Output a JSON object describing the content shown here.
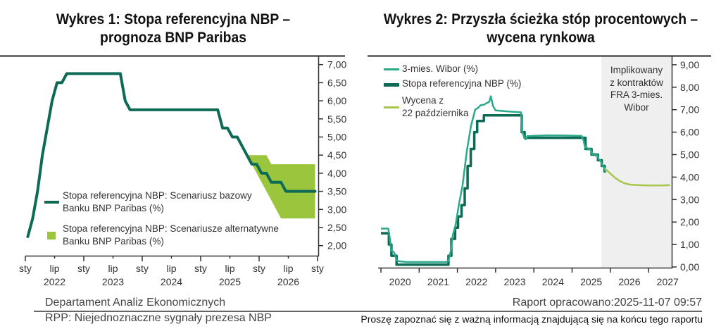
{
  "chart1": {
    "title": {
      "line1": "Wykres 1: Stopa referencyjna NBP –",
      "line2": "prognoza BNP Paribas"
    },
    "legend": [
      {
        "line1": "Stopa referencyjna NBP: Scenariusz bazowy",
        "line2": "Banku BNP Paribas (%)",
        "marker": "line"
      },
      {
        "line1": "Stopa referencyjna NBP: Scenariusze alternatywne",
        "line2": "Banku BNP Paribas (%)",
        "marker": "square"
      }
    ]
  },
  "chart2": {
    "title": {
      "line1": "Wykres 2: Przyszła ścieżka stóp procentowych –",
      "line2": "wycena rynkowa"
    },
    "legend": [
      {
        "line1": "3-mies. Wibor (%)",
        "marker": "line"
      },
      {
        "line1": "Stopa referencyjna NBP (%)",
        "marker": "line"
      },
      {
        "line1": "Wycena z",
        "line2": "22 października",
        "marker": "line"
      }
    ],
    "shade_label": [
      "Implikowany",
      "z kontraktów",
      "FRA 3-mies.",
      "Wibor"
    ]
  },
  "footer": {
    "department": "Departament Analiz Ekonomicznych",
    "report_date": "Raport opracowano:2025-11-07 09:57",
    "report_title": "RPP: Niejednoznaczne sygnały prezesa NBP",
    "disclaimer": "Proszę zapoznać się z ważną informacją znajdującą się na końcu tego raportu"
  },
  "colors": {
    "rule": "#222222",
    "axis": "#333333",
    "base_line": "#0d6b55",
    "band": "#9bc53d",
    "wibor": "#2aa98b",
    "ref_rate": "#0d6b55",
    "pricing": "#a7c64b",
    "shade": "#efefef"
  },
  "chart_data": [
    {
      "type": "line",
      "title": "Wykres 1: Stopa referencyjna NBP – prognoza BNP Paribas",
      "xlabel": "",
      "ylabel": "",
      "x_start": "2022-01",
      "x_step": "month",
      "ylim": [
        2.0,
        7.0
      ],
      "y_tick_values": [
        2.0,
        2.5,
        3.0,
        3.5,
        4.0,
        4.5,
        5.0,
        5.5,
        6.0,
        6.5,
        7.0
      ],
      "y_ticks": [
        "2,00",
        "2,50",
        "3,00",
        "3,50",
        "4,00",
        "4,50",
        "5,00",
        "5,50",
        "6,00",
        "6,50",
        "7,00"
      ],
      "x_tick_labels": [
        "sty",
        "lip",
        "sty",
        "lip",
        "sty",
        "lip",
        "sty",
        "lip",
        "sty",
        "lip",
        "sty"
      ],
      "x_year_labels": [
        "2022",
        "2023",
        "2024",
        "2025",
        "2026"
      ],
      "grid": false,
      "legend_position": "lower-left",
      "series": [
        {
          "name": "Stopa referencyjna NBP: Scenariusz bazowy Banku BNP Paribas (%)",
          "kind": "line",
          "values": [
            2.25,
            2.75,
            3.5,
            4.5,
            5.25,
            6.0,
            6.5,
            6.5,
            6.75,
            6.75,
            6.75,
            6.75,
            6.75,
            6.75,
            6.75,
            6.75,
            6.75,
            6.75,
            6.75,
            6.75,
            6.0,
            5.75,
            5.75,
            5.75,
            5.75,
            5.75,
            5.75,
            5.75,
            5.75,
            5.75,
            5.75,
            5.75,
            5.75,
            5.75,
            5.75,
            5.75,
            5.75,
            5.75,
            5.75,
            5.75,
            5.25,
            5.25,
            5.0,
            5.0,
            4.75,
            4.5,
            4.25,
            4.25,
            4.0,
            4.0,
            3.75,
            3.75,
            3.75,
            3.5,
            3.5,
            3.5,
            3.5,
            3.5,
            3.5,
            3.5
          ]
        },
        {
          "name": "Stopa referencyjna NBP: Scenariusze alternatywne Banku BNP Paribas (%)",
          "kind": "band",
          "start_index": 45,
          "upper": [
            4.5,
            4.5,
            4.5,
            4.5,
            4.5,
            4.25,
            4.25,
            4.25,
            4.25,
            4.25,
            4.25,
            4.25,
            4.25,
            4.25,
            4.25
          ],
          "lower": [
            4.5,
            4.25,
            4.0,
            3.75,
            3.5,
            3.25,
            3.0,
            2.75,
            2.75,
            2.75,
            2.75,
            2.75,
            2.75,
            2.75,
            2.75
          ]
        }
      ]
    },
    {
      "type": "line",
      "title": "Wykres 2: Przyszła ścieżka stóp procentowych – wycena rynkowa",
      "xlabel": "",
      "ylabel": "",
      "x_origin": "2020-01",
      "x_unit": "month",
      "ylim": [
        0,
        9
      ],
      "y_tick_values": [
        0,
        1,
        2,
        3,
        4,
        5,
        6,
        7,
        8,
        9
      ],
      "y_ticks": [
        "0,00",
        "1,00",
        "2,00",
        "3,00",
        "4,00",
        "5,00",
        "6,00",
        "7,00",
        "8,00",
        "9,00"
      ],
      "x_tick_labels": [
        "2020",
        "2021",
        "2022",
        "2023",
        "2024",
        "2025",
        "2026",
        "2027"
      ],
      "grid": false,
      "legend_position": "upper-left",
      "shaded_region": {
        "from": 69.2,
        "to": 91.4,
        "label": "Implikowany z kontraktów FRA 3-mies. Wibor"
      },
      "series": [
        {
          "name": "3-mies. Wibor (%)",
          "kind": "line",
          "points": [
            [
              0,
              1.71
            ],
            [
              2.3,
              1.71
            ],
            [
              2.6,
              1.45
            ],
            [
              2.9,
              1.17
            ],
            [
              3.2,
              0.72
            ],
            [
              3.9,
              0.68
            ],
            [
              4.3,
              0.6
            ],
            [
              4.9,
              0.3
            ],
            [
              5.5,
              0.26
            ],
            [
              8,
              0.22
            ],
            [
              20.5,
              0.22
            ],
            [
              21.2,
              0.27
            ],
            [
              22,
              0.75
            ],
            [
              22.6,
              1.45
            ],
            [
              23.4,
              1.85
            ],
            [
              24.5,
              2.8
            ],
            [
              25.6,
              3.6
            ],
            [
              27,
              5.2
            ],
            [
              28.3,
              6.3
            ],
            [
              29.6,
              7.0
            ],
            [
              30.5,
              7.08
            ],
            [
              31.3,
              7.2
            ],
            [
              32.3,
              7.22
            ],
            [
              33.3,
              7.3
            ],
            [
              34,
              7.35
            ],
            [
              34.5,
              7.6
            ],
            [
              35.2,
              7.15
            ],
            [
              36,
              6.97
            ],
            [
              40,
              6.92
            ],
            [
              44,
              6.88
            ],
            [
              44.3,
              6.05
            ],
            [
              44.9,
              5.8
            ],
            [
              45.4,
              5.68
            ],
            [
              46,
              5.82
            ],
            [
              52,
              5.86
            ],
            [
              58,
              5.85
            ],
            [
              63,
              5.83
            ],
            [
              63.6,
              5.62
            ],
            [
              64.1,
              5.32
            ],
            [
              64.7,
              5.3
            ],
            [
              65.2,
              5.22
            ],
            [
              65.8,
              5.25
            ],
            [
              66.3,
              5.02
            ],
            [
              66.9,
              5.05
            ],
            [
              67.4,
              4.95
            ],
            [
              67.9,
              4.98
            ],
            [
              68.4,
              4.78
            ],
            [
              68.9,
              4.75
            ],
            [
              69.4,
              4.55
            ],
            [
              69.9,
              4.45
            ],
            [
              70.3,
              4.35
            ],
            [
              70.5,
              4.22
            ]
          ]
        },
        {
          "name": "Stopa referencyjna NBP (%)",
          "kind": "step",
          "points": [
            [
              0,
              1.5
            ],
            [
              2.5,
              1.0
            ],
            [
              3.3,
              0.5
            ],
            [
              4.9,
              0.1
            ],
            [
              21.2,
              0.5
            ],
            [
              22.1,
              1.25
            ],
            [
              23.3,
              1.75
            ],
            [
              24.2,
              2.25
            ],
            [
              25.3,
              2.75
            ],
            [
              26.3,
              3.5
            ],
            [
              27.2,
              4.5
            ],
            [
              28.2,
              5.25
            ],
            [
              29.3,
              6.0
            ],
            [
              30.2,
              6.5
            ],
            [
              32.3,
              6.75
            ],
            [
              44.2,
              6.0
            ],
            [
              45.1,
              5.75
            ],
            [
              64.2,
              5.25
            ],
            [
              66.1,
              5.0
            ],
            [
              68.1,
              4.75
            ],
            [
              69.3,
              4.5
            ],
            [
              70.2,
              4.25
            ],
            [
              70.6,
              4.25
            ]
          ]
        },
        {
          "name": "Wycena z 22 października",
          "kind": "line",
          "points": [
            [
              70.5,
              4.35
            ],
            [
              72,
              4.16
            ],
            [
              73.5,
              3.97
            ],
            [
              75,
              3.82
            ],
            [
              76.5,
              3.72
            ],
            [
              78,
              3.67
            ],
            [
              80,
              3.65
            ],
            [
              84,
              3.63
            ],
            [
              88,
              3.63
            ],
            [
              90.5,
              3.64
            ]
          ]
        }
      ]
    }
  ]
}
